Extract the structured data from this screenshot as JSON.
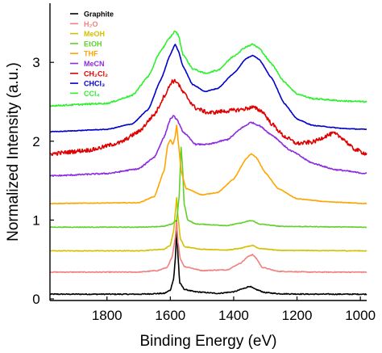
{
  "chart_data": {
    "type": "line",
    "xlabel": "Binding Energy (eV)",
    "ylabel": "Normalized Intensity (a.u.)",
    "xlim": [
      1980,
      980
    ],
    "ylim": [
      -0.02,
      3.75
    ],
    "x_reversed": true,
    "x_ticks": [
      1800,
      1600,
      1400,
      1200,
      1000
    ],
    "x_tick_labels": [
      "1800",
      "1600",
      "1400",
      "1200",
      "1000"
    ],
    "y_ticks": [
      0,
      1,
      2,
      3
    ],
    "y_tick_labels": [
      "0",
      "1",
      "2",
      "3"
    ],
    "legend_position": "top-left",
    "series": [
      {
        "name": "Graphite",
        "color": "#000000",
        "baseline": 0.06,
        "noise": 0.006,
        "points": [
          [
            1980,
            0.06
          ],
          [
            1700,
            0.06
          ],
          [
            1620,
            0.07
          ],
          [
            1600,
            0.11
          ],
          [
            1590,
            0.25
          ],
          [
            1583,
            0.55
          ],
          [
            1580,
            0.99
          ],
          [
            1577,
            0.6
          ],
          [
            1570,
            0.2
          ],
          [
            1555,
            0.12
          ],
          [
            1520,
            0.09
          ],
          [
            1450,
            0.07
          ],
          [
            1400,
            0.09
          ],
          [
            1370,
            0.13
          ],
          [
            1350,
            0.16
          ],
          [
            1330,
            0.12
          ],
          [
            1300,
            0.08
          ],
          [
            1250,
            0.065
          ],
          [
            1150,
            0.06
          ],
          [
            980,
            0.06
          ]
        ]
      },
      {
        "name": "H₂O",
        "color": "#f08080",
        "baseline": 0.33,
        "noise": 0.005,
        "points": [
          [
            1980,
            0.34
          ],
          [
            1700,
            0.34
          ],
          [
            1640,
            0.36
          ],
          [
            1610,
            0.4
          ],
          [
            1595,
            0.52
          ],
          [
            1585,
            0.75
          ],
          [
            1580,
            0.98
          ],
          [
            1576,
            0.72
          ],
          [
            1568,
            0.5
          ],
          [
            1555,
            0.41
          ],
          [
            1500,
            0.36
          ],
          [
            1420,
            0.37
          ],
          [
            1380,
            0.45
          ],
          [
            1350,
            0.55
          ],
          [
            1340,
            0.56
          ],
          [
            1330,
            0.52
          ],
          [
            1310,
            0.4
          ],
          [
            1260,
            0.35
          ],
          [
            1150,
            0.34
          ],
          [
            980,
            0.34
          ]
        ]
      },
      {
        "name": "MeOH",
        "color": "#d4c000",
        "baseline": 0.61,
        "noise": 0.004,
        "points": [
          [
            1980,
            0.61
          ],
          [
            1700,
            0.61
          ],
          [
            1620,
            0.63
          ],
          [
            1600,
            0.68
          ],
          [
            1590,
            0.85
          ],
          [
            1584,
            1.1
          ],
          [
            1580,
            1.28
          ],
          [
            1576,
            1.05
          ],
          [
            1568,
            0.76
          ],
          [
            1555,
            0.66
          ],
          [
            1500,
            0.63
          ],
          [
            1420,
            0.62
          ],
          [
            1380,
            0.64
          ],
          [
            1350,
            0.67
          ],
          [
            1340,
            0.68
          ],
          [
            1320,
            0.64
          ],
          [
            1250,
            0.615
          ],
          [
            980,
            0.61
          ]
        ]
      },
      {
        "name": "EtOH",
        "color": "#5fd128",
        "baseline": 0.91,
        "noise": 0.004,
        "points": [
          [
            1980,
            0.91
          ],
          [
            1700,
            0.91
          ],
          [
            1620,
            0.92
          ],
          [
            1595,
            0.95
          ],
          [
            1580,
            1.0
          ],
          [
            1572,
            1.3
          ],
          [
            1566,
            1.92
          ],
          [
            1562,
            1.7
          ],
          [
            1556,
            1.2
          ],
          [
            1545,
            1.0
          ],
          [
            1520,
            0.95
          ],
          [
            1420,
            0.93
          ],
          [
            1380,
            0.96
          ],
          [
            1350,
            0.99
          ],
          [
            1340,
            0.99
          ],
          [
            1320,
            0.95
          ],
          [
            1250,
            0.92
          ],
          [
            980,
            0.91
          ]
        ]
      },
      {
        "name": "THF",
        "color": "#ffa500",
        "baseline": 1.21,
        "noise": 0.004,
        "points": [
          [
            1980,
            1.21
          ],
          [
            1700,
            1.22
          ],
          [
            1650,
            1.3
          ],
          [
            1620,
            1.62
          ],
          [
            1608,
            1.95
          ],
          [
            1600,
            2.02
          ],
          [
            1592,
            1.96
          ],
          [
            1585,
            2.05
          ],
          [
            1580,
            2.2
          ],
          [
            1574,
            1.95
          ],
          [
            1565,
            1.6
          ],
          [
            1550,
            1.4
          ],
          [
            1500,
            1.32
          ],
          [
            1450,
            1.35
          ],
          [
            1400,
            1.52
          ],
          [
            1360,
            1.78
          ],
          [
            1345,
            1.84
          ],
          [
            1330,
            1.8
          ],
          [
            1300,
            1.6
          ],
          [
            1260,
            1.4
          ],
          [
            1200,
            1.27
          ],
          [
            1100,
            1.23
          ],
          [
            980,
            1.21
          ]
        ]
      },
      {
        "name": "MeCN",
        "color": "#8b2be2",
        "baseline": 1.56,
        "noise": 0.008,
        "points": [
          [
            1980,
            1.56
          ],
          [
            1800,
            1.59
          ],
          [
            1700,
            1.65
          ],
          [
            1650,
            1.8
          ],
          [
            1620,
            2.05
          ],
          [
            1600,
            2.28
          ],
          [
            1590,
            2.32
          ],
          [
            1580,
            2.28
          ],
          [
            1560,
            2.12
          ],
          [
            1520,
            1.96
          ],
          [
            1480,
            1.96
          ],
          [
            1420,
            2.02
          ],
          [
            1370,
            2.18
          ],
          [
            1345,
            2.24
          ],
          [
            1320,
            2.2
          ],
          [
            1280,
            2.08
          ],
          [
            1220,
            1.88
          ],
          [
            1150,
            1.72
          ],
          [
            1080,
            1.64
          ],
          [
            980,
            1.59
          ]
        ]
      },
      {
        "name": "CH₂Cl₂",
        "color": "#e00000",
        "baseline": 1.84,
        "noise": 0.025,
        "points": [
          [
            1980,
            1.84
          ],
          [
            1850,
            1.89
          ],
          [
            1760,
            1.98
          ],
          [
            1700,
            2.12
          ],
          [
            1650,
            2.34
          ],
          [
            1615,
            2.6
          ],
          [
            1595,
            2.76
          ],
          [
            1580,
            2.76
          ],
          [
            1560,
            2.62
          ],
          [
            1520,
            2.42
          ],
          [
            1480,
            2.36
          ],
          [
            1430,
            2.38
          ],
          [
            1380,
            2.4
          ],
          [
            1340,
            2.43
          ],
          [
            1310,
            2.38
          ],
          [
            1280,
            2.22
          ],
          [
            1240,
            2.06
          ],
          [
            1200,
            1.97
          ],
          [
            1150,
            1.99
          ],
          [
            1100,
            2.08
          ],
          [
            1085,
            2.1
          ],
          [
            1060,
            2.05
          ],
          [
            1020,
            1.9
          ],
          [
            980,
            1.84
          ]
        ]
      },
      {
        "name": "CHCl₃",
        "color": "#0000cc",
        "baseline": 2.12,
        "noise": 0.004,
        "points": [
          [
            1980,
            2.12
          ],
          [
            1800,
            2.15
          ],
          [
            1720,
            2.22
          ],
          [
            1670,
            2.4
          ],
          [
            1630,
            2.78
          ],
          [
            1600,
            3.1
          ],
          [
            1585,
            3.23
          ],
          [
            1575,
            3.15
          ],
          [
            1560,
            2.95
          ],
          [
            1530,
            2.72
          ],
          [
            1490,
            2.63
          ],
          [
            1450,
            2.67
          ],
          [
            1400,
            2.86
          ],
          [
            1360,
            3.05
          ],
          [
            1340,
            3.09
          ],
          [
            1320,
            3.04
          ],
          [
            1280,
            2.8
          ],
          [
            1240,
            2.48
          ],
          [
            1200,
            2.28
          ],
          [
            1150,
            2.2
          ],
          [
            1050,
            2.16
          ],
          [
            980,
            2.15
          ]
        ]
      },
      {
        "name": "CCl₄",
        "color": "#2ef02e",
        "baseline": 2.45,
        "noise": 0.009,
        "points": [
          [
            1980,
            2.45
          ],
          [
            1800,
            2.48
          ],
          [
            1720,
            2.58
          ],
          [
            1670,
            2.82
          ],
          [
            1630,
            3.15
          ],
          [
            1600,
            3.32
          ],
          [
            1585,
            3.4
          ],
          [
            1575,
            3.35
          ],
          [
            1560,
            3.1
          ],
          [
            1530,
            2.92
          ],
          [
            1490,
            2.86
          ],
          [
            1450,
            2.9
          ],
          [
            1400,
            3.08
          ],
          [
            1360,
            3.2
          ],
          [
            1340,
            3.23
          ],
          [
            1320,
            3.18
          ],
          [
            1280,
            2.98
          ],
          [
            1240,
            2.75
          ],
          [
            1200,
            2.6
          ],
          [
            1150,
            2.54
          ],
          [
            1050,
            2.51
          ],
          [
            980,
            2.5
          ]
        ]
      }
    ]
  }
}
